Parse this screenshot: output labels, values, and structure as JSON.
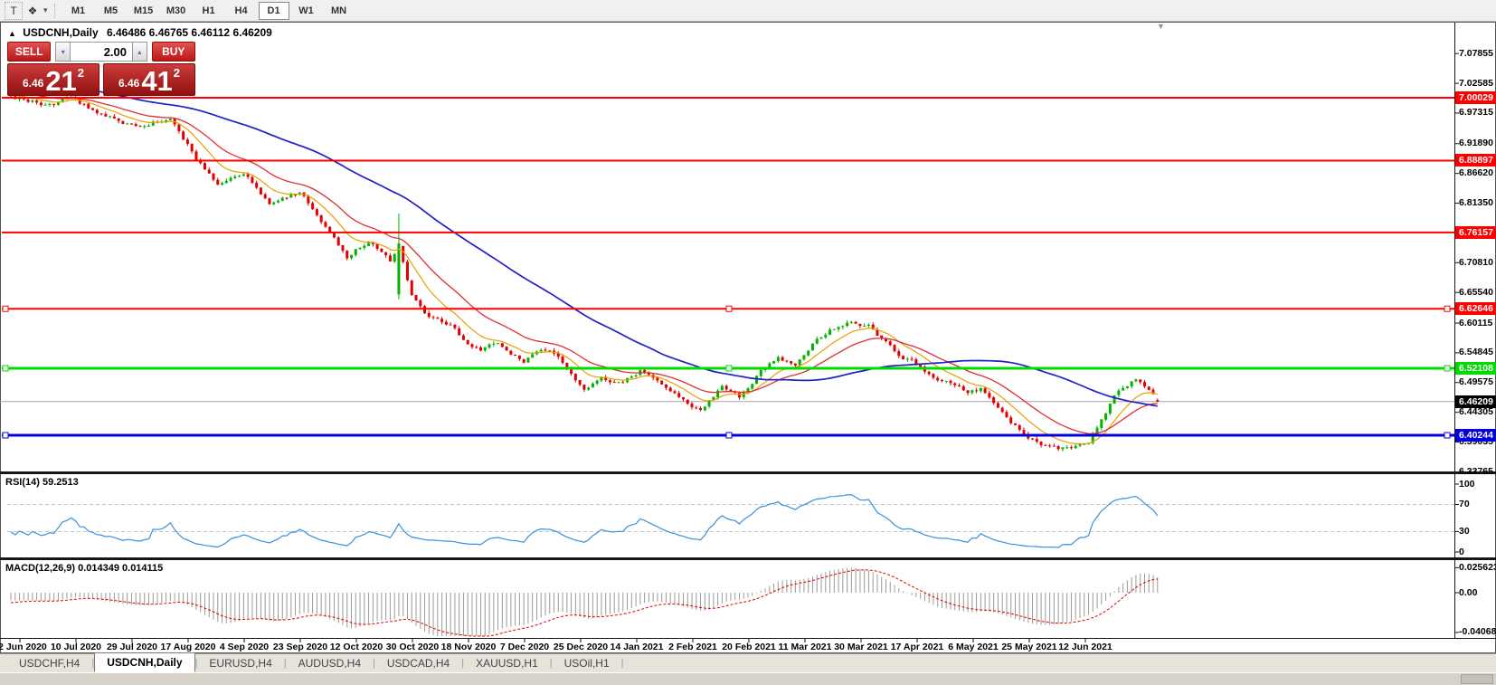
{
  "toolbar": {
    "text_tool_label": "T",
    "cursor_tool_icon": "❖",
    "dropdown_caret": "▾",
    "timeframes": [
      "M1",
      "M5",
      "M15",
      "M30",
      "H1",
      "H4",
      "D1",
      "W1",
      "MN"
    ],
    "active_timeframe": "D1"
  },
  "chart": {
    "collapse_marker": "▲",
    "title_symbol": "USDCNH,Daily",
    "title_ohlc": "6.46486 6.46765 6.46112 6.46209",
    "shift_marker": "▼"
  },
  "trade_panel": {
    "sell_label": "SELL",
    "buy_label": "BUY",
    "volume": "2.00",
    "spin_up_icon": "▴",
    "spin_down_icon": "▾",
    "sell_price_small": "6.46",
    "sell_price_big": "21",
    "sell_price_sup": "2",
    "buy_price_small": "6.46",
    "buy_price_big": "41",
    "buy_price_sup": "2"
  },
  "price_axis": {
    "ticks": [
      "7.07855",
      "7.02585",
      "6.97315",
      "6.91890",
      "6.86620",
      "6.81350",
      "6.70810",
      "6.65540",
      "6.60115",
      "6.54845",
      "6.49575",
      "6.44305",
      "6.39035",
      "6.33765"
    ]
  },
  "price_lines": [
    {
      "value": 7.00029,
      "label": "7.00029",
      "color": "#FF0000",
      "width": 2,
      "selected": false
    },
    {
      "value": 6.88897,
      "label": "6.88897",
      "color": "#FF0000",
      "width": 2,
      "selected": false
    },
    {
      "value": 6.76157,
      "label": "6.76157",
      "color": "#FF0000",
      "width": 2,
      "selected": false
    },
    {
      "value": 6.62646,
      "label": "6.62646",
      "color": "#FF0000",
      "width": 2,
      "selected": true
    },
    {
      "value": 6.52108,
      "label": "6.52108",
      "color": "#00DC00",
      "width": 3,
      "selected": true
    },
    {
      "value": 6.40244,
      "label": "6.40244",
      "color": "#0000E0",
      "width": 3,
      "selected": true
    }
  ],
  "current_price": {
    "value": 6.46209,
    "label": "6.46209",
    "box_color": "#000000"
  },
  "rsi_panel": {
    "label": "RSI(14) 59.2513",
    "period": 14,
    "value": 59.2513,
    "levels": [
      {
        "v": 100,
        "label": "100"
      },
      {
        "v": 70,
        "label": "70"
      },
      {
        "v": 30,
        "label": "30"
      },
      {
        "v": 0,
        "label": "0"
      }
    ]
  },
  "macd_panel": {
    "label": "MACD(12,26,9) 0.014349 0.014115",
    "macd_value": 0.014349,
    "signal_value": 0.014115,
    "axis": [
      {
        "v": 0.025623,
        "label": "0.025623"
      },
      {
        "v": 0,
        "label": "0.00"
      },
      {
        "v": -0.040687,
        "label": "-0.040687"
      }
    ]
  },
  "time_axis": {
    "dates": [
      "22 Jun 2020",
      "10 Jul 2020",
      "29 Jul 2020",
      "17 Aug 2020",
      "4 Sep 2020",
      "23 Sep 2020",
      "12 Oct 2020",
      "30 Oct 2020",
      "18 Nov 2020",
      "7 Dec 2020",
      "25 Dec 2020",
      "14 Jan 2021",
      "2 Feb 2021",
      "20 Feb 2021",
      "11 Mar 2021",
      "30 Mar 2021",
      "17 Apr 2021",
      "6 May 2021",
      "25 May 2021",
      "12 Jun 2021"
    ]
  },
  "tabs": {
    "items": [
      {
        "label": "USDCHF,H4",
        "active": false
      },
      {
        "label": "USDCNH,Daily",
        "active": true
      },
      {
        "label": "EURUSD,H4",
        "active": false
      },
      {
        "label": "AUDUSD,H4",
        "active": false
      },
      {
        "label": "USDCAD,H4",
        "active": false
      },
      {
        "label": "XAUUSD,H1",
        "active": false
      },
      {
        "label": "USOil,H1",
        "active": false
      }
    ]
  },
  "colors": {
    "candle_up": "#00B400",
    "candle_down": "#E00000",
    "ma_fast": "#E8A000",
    "ma_medium": "#E03030",
    "ma_slow": "#2020C8",
    "rsi_line": "#3A8FE0",
    "macd_histogram": "#9A9A9A",
    "macd_signal": "#E00000",
    "current_price_line": "#A8A8A8"
  },
  "chart_data": {
    "type": "candlestick",
    "symbol": "USDCNH",
    "timeframe": "Daily",
    "bars": 267,
    "seed": 20210625,
    "visible_range": {
      "price_top": 7.1317,
      "price_bottom": 6.3351,
      "first_date": "22 Jun 2020",
      "last_date": "25 Jun 2021"
    },
    "anchors": [
      [
        0,
        7.003
      ],
      [
        8,
        6.988
      ],
      [
        14,
        6.998
      ],
      [
        20,
        6.975
      ],
      [
        29,
        6.95
      ],
      [
        37,
        6.966
      ],
      [
        43,
        6.894
      ],
      [
        48,
        6.846
      ],
      [
        54,
        6.868
      ],
      [
        60,
        6.814
      ],
      [
        67,
        6.835
      ],
      [
        73,
        6.773
      ],
      [
        78,
        6.718
      ],
      [
        83,
        6.748
      ],
      [
        88,
        6.712
      ],
      [
        90,
        6.737
      ],
      [
        93,
        6.648
      ],
      [
        96,
        6.618
      ],
      [
        102,
        6.596
      ],
      [
        106,
        6.566
      ],
      [
        109,
        6.555
      ],
      [
        113,
        6.565
      ],
      [
        119,
        6.533
      ],
      [
        123,
        6.556
      ],
      [
        127,
        6.541
      ],
      [
        133,
        6.486
      ],
      [
        137,
        6.508
      ],
      [
        142,
        6.494
      ],
      [
        146,
        6.517
      ],
      [
        151,
        6.494
      ],
      [
        157,
        6.463
      ],
      [
        160,
        6.445
      ],
      [
        165,
        6.492
      ],
      [
        169,
        6.47
      ],
      [
        174,
        6.516
      ],
      [
        178,
        6.541
      ],
      [
        182,
        6.525
      ],
      [
        186,
        6.564
      ],
      [
        190,
        6.59
      ],
      [
        195,
        6.605
      ],
      [
        199,
        6.597
      ],
      [
        202,
        6.573
      ],
      [
        205,
        6.549
      ],
      [
        209,
        6.533
      ],
      [
        213,
        6.509
      ],
      [
        218,
        6.493
      ],
      [
        222,
        6.477
      ],
      [
        225,
        6.485
      ],
      [
        228,
        6.461
      ],
      [
        231,
        6.432
      ],
      [
        235,
        6.405
      ],
      [
        239,
        6.386
      ],
      [
        243,
        6.378
      ],
      [
        247,
        6.384
      ],
      [
        250,
        6.392
      ],
      [
        253,
        6.428
      ],
      [
        256,
        6.47
      ],
      [
        259,
        6.492
      ],
      [
        261,
        6.503
      ],
      [
        263,
        6.49
      ],
      [
        266,
        6.46209
      ]
    ],
    "spike_bar": {
      "bar": 90,
      "open": 6.652,
      "close": 6.742,
      "high": 6.795,
      "low": 6.643
    },
    "last_bar": {
      "open": 6.46486,
      "high": 6.46765,
      "low": 6.46112,
      "close": 6.46209
    },
    "moving_averages": [
      {
        "name": "fast",
        "method": "ema",
        "period": 10,
        "color_key": "ma_fast"
      },
      {
        "name": "medium",
        "method": "ema",
        "period": 22,
        "color_key": "ma_medium"
      },
      {
        "name": "slow",
        "method": "sma",
        "period": 60,
        "color_key": "ma_slow"
      }
    ],
    "indicators": [
      {
        "name": "RSI",
        "period": 14
      },
      {
        "name": "MACD",
        "fast": 12,
        "slow": 26,
        "signal": 9
      }
    ]
  }
}
